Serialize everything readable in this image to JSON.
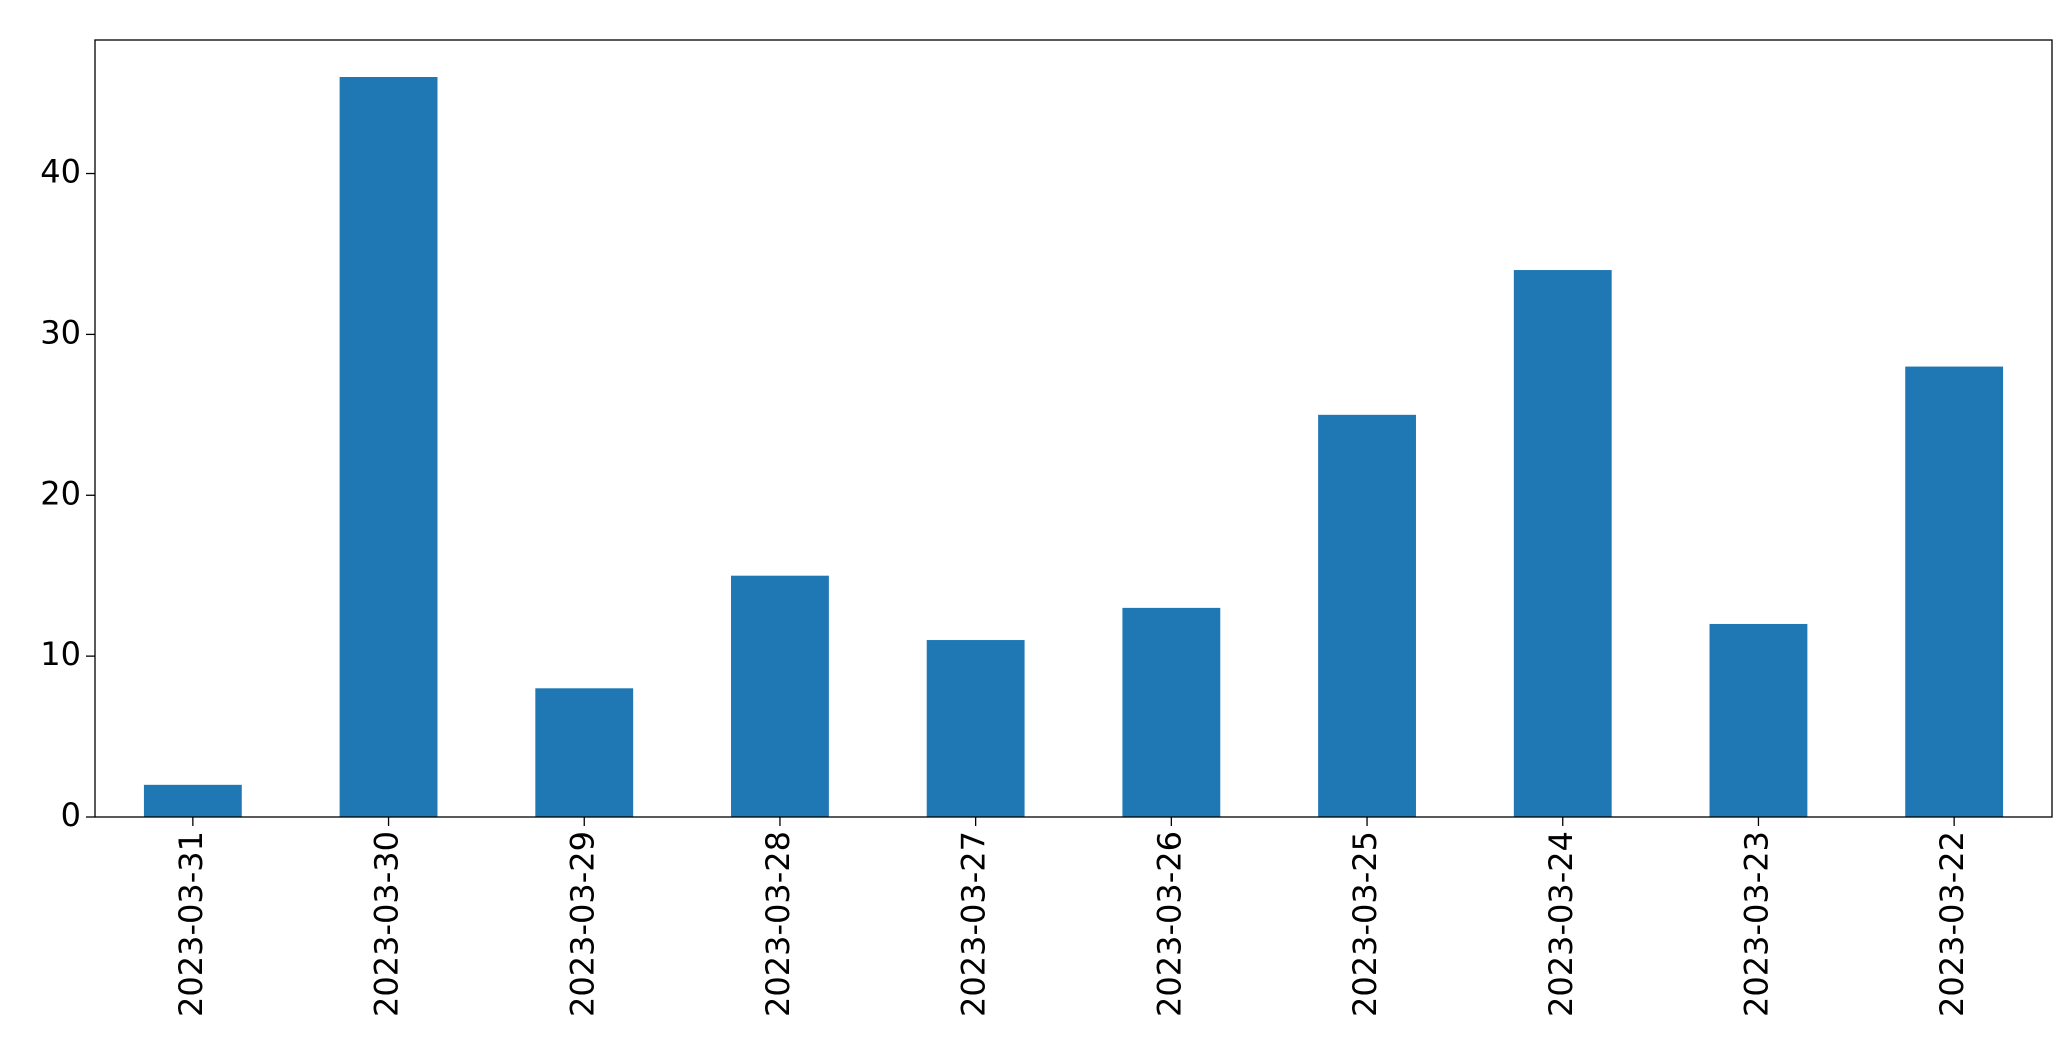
{
  "chart_data": {
    "type": "bar",
    "categories": [
      "2023-03-31",
      "2023-03-30",
      "2023-03-29",
      "2023-03-28",
      "2023-03-27",
      "2023-03-26",
      "2023-03-25",
      "2023-03-24",
      "2023-03-23",
      "2023-03-22"
    ],
    "values": [
      2,
      46,
      8,
      15,
      11,
      13,
      25,
      34,
      12,
      28
    ],
    "color": "#1f77b4",
    "ylim": [
      0,
      48.3
    ],
    "yticks": [
      0,
      10,
      20,
      30,
      40
    ],
    "grid": false
  }
}
